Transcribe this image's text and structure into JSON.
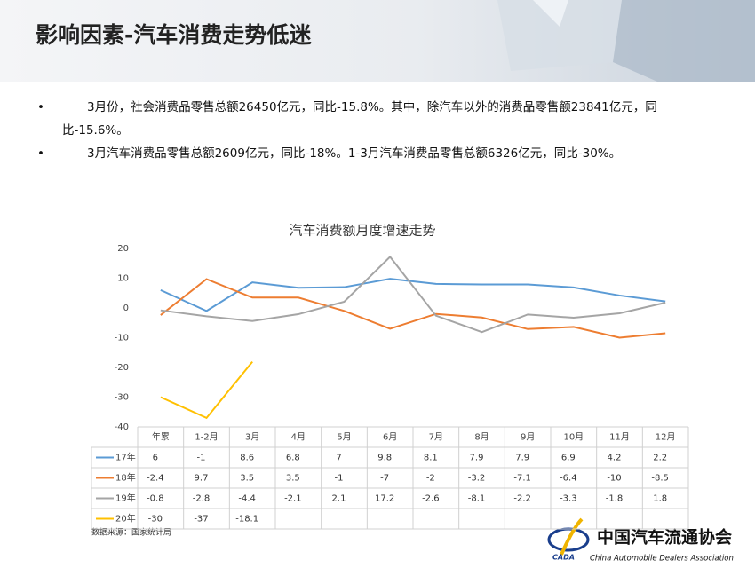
{
  "header": {
    "title": "影响因素-汽车消费走势低迷"
  },
  "bullets": [
    "3月份，社会消费品零售总额26450亿元，同比-15.8%。其中，除汽车以外的消费品零售额23841亿元，同比-15.6%。",
    "3月汽车消费品零售总额2609亿元，同比-18%。1-3月汽车消费品零售总额6326亿元，同比-30%。"
  ],
  "chart_data": {
    "type": "line",
    "title": "汽车消费额月度增速走势",
    "categories": [
      "年累",
      "1-2月",
      "3月",
      "4月",
      "5月",
      "6月",
      "7月",
      "8月",
      "9月",
      "10月",
      "11月",
      "12月"
    ],
    "series": [
      {
        "name": "17年",
        "color": "#5b9bd5",
        "values": [
          6,
          -1,
          8.6,
          6.8,
          7,
          9.8,
          8.1,
          7.9,
          7.9,
          6.9,
          4.2,
          2.2
        ]
      },
      {
        "name": "18年",
        "color": "#ed7d31",
        "values": [
          -2.4,
          9.7,
          3.5,
          3.5,
          -1,
          -7,
          -2,
          -3.2,
          -7.1,
          -6.4,
          -10,
          -8.5
        ]
      },
      {
        "name": "19年",
        "color": "#a5a5a5",
        "values": [
          -0.8,
          -2.8,
          -4.4,
          -2.1,
          2.1,
          17.2,
          -2.6,
          -8.1,
          -2.2,
          -3.3,
          -1.8,
          1.8
        ]
      },
      {
        "name": "20年",
        "color": "#ffc000",
        "values": [
          -30,
          -37,
          -18.1,
          null,
          null,
          null,
          null,
          null,
          null,
          null,
          null,
          null
        ]
      }
    ],
    "ylim": [
      -40,
      20
    ],
    "yticks": [
      -40,
      -30,
      -20,
      -10,
      0,
      10,
      20
    ],
    "grid": false
  },
  "source": "数据来源：国家统计局",
  "logo": {
    "mark": "CADA",
    "name_cn": "中国汽车流通协会",
    "name_en": "China Automobile Dealers Association"
  }
}
